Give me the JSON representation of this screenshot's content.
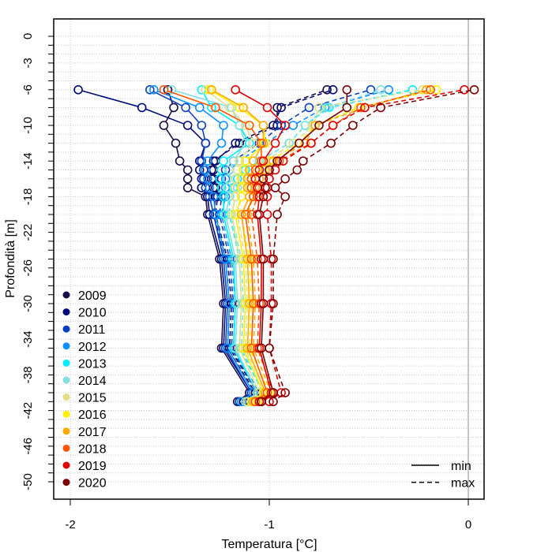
{
  "chart_data": {
    "type": "line",
    "xlabel": "Temperatura [°C]",
    "ylabel": "Profondità [m]",
    "xlim": [
      -2.08,
      0.08
    ],
    "ylim": [
      -52,
      2
    ],
    "xticks": [
      -2,
      -1,
      0
    ],
    "xtick_labels": [
      "-2",
      "-1",
      "0"
    ],
    "yticks": [
      0,
      -3,
      -6,
      -10,
      -14,
      -18,
      -22,
      -26,
      -30,
      -34,
      -38,
      -42,
      -46,
      -50
    ],
    "ytick_labels": [
      "0",
      "-3",
      "-6",
      "-10",
      "-14",
      "-18",
      "-22",
      "-26",
      "-30",
      "-34",
      "-38",
      "-42",
      "-46",
      "-50"
    ],
    "grid": true,
    "reference_line_x": 0,
    "legend_position": "bottom-left",
    "linetype_legend_position": "bottom-right",
    "linetype_legend": [
      {
        "label": "min",
        "style": "solid"
      },
      {
        "label": "max",
        "style": "dashed"
      }
    ],
    "depths": [
      -6,
      -8,
      -10,
      -12,
      -14,
      -15,
      -16,
      -17,
      -18,
      -20,
      -25,
      -30,
      -35,
      -40,
      -41
    ],
    "series": [
      {
        "name": "2009",
        "color": "#1b0c45",
        "min": [
          -1.51,
          -1.48,
          -1.53,
          -1.47,
          -1.45,
          -1.41,
          -1.41,
          -1.41,
          -1.32,
          -1.31,
          -1.25,
          -1.23,
          -1.24,
          -1.1,
          -1.16
        ],
        "max": [
          -0.71,
          -0.96,
          -0.96,
          -1.15,
          -1.28,
          -1.29,
          -1.29,
          -1.28,
          -1.27,
          -1.28,
          -1.22,
          -1.2,
          -1.21,
          -1.07,
          -1.13
        ]
      },
      {
        "name": "2010",
        "color": "#000a78",
        "min": [
          -1.96,
          -1.64,
          -1.41,
          -1.32,
          -1.35,
          -1.35,
          -1.34,
          -1.34,
          -1.31,
          -1.3,
          -1.24,
          -1.22,
          -1.23,
          -1.09,
          -1.15
        ],
        "max": [
          -0.68,
          -0.94,
          -0.98,
          -1.17,
          -1.27,
          -1.28,
          -1.28,
          -1.27,
          -1.26,
          -1.27,
          -1.21,
          -1.19,
          -1.2,
          -1.06,
          -1.12
        ]
      },
      {
        "name": "2011",
        "color": "#0a40c0",
        "min": [
          -1.6,
          -1.42,
          -1.34,
          -1.32,
          -1.34,
          -1.33,
          -1.33,
          -1.32,
          -1.3,
          -1.28,
          -1.23,
          -1.21,
          -1.22,
          -1.09,
          -1.15
        ],
        "max": [
          -0.49,
          -0.8,
          -0.94,
          -1.05,
          -1.18,
          -1.22,
          -1.24,
          -1.24,
          -1.24,
          -1.25,
          -1.2,
          -1.18,
          -1.19,
          -1.06,
          -1.12
        ]
      },
      {
        "name": "2012",
        "color": "#0a90ff",
        "min": [
          -1.58,
          -1.35,
          -1.23,
          -1.24,
          -1.31,
          -1.32,
          -1.31,
          -1.3,
          -1.28,
          -1.27,
          -1.22,
          -1.2,
          -1.21,
          -1.08,
          -1.14
        ],
        "max": [
          -0.4,
          -0.72,
          -0.88,
          -1.02,
          -1.15,
          -1.2,
          -1.22,
          -1.22,
          -1.22,
          -1.24,
          -1.19,
          -1.17,
          -1.18,
          -1.05,
          -1.11
        ]
      },
      {
        "name": "2013",
        "color": "#00eeff",
        "min": [
          -1.34,
          -1.29,
          -1.15,
          -1.1,
          -1.23,
          -1.24,
          -1.25,
          -1.24,
          -1.23,
          -1.23,
          -1.18,
          -1.17,
          -1.18,
          -1.06,
          -1.12
        ],
        "max": [
          -0.28,
          -0.7,
          -0.82,
          -0.9,
          -1.05,
          -1.12,
          -1.16,
          -1.18,
          -1.2,
          -1.2,
          -1.15,
          -1.14,
          -1.15,
          -1.03,
          -1.09
        ]
      },
      {
        "name": "2014",
        "color": "#80e0e0",
        "min": [
          -1.49,
          -1.19,
          -1.15,
          -1.12,
          -1.18,
          -1.2,
          -1.21,
          -1.21,
          -1.2,
          -1.22,
          -1.17,
          -1.16,
          -1.17,
          -1.06,
          -1.12
        ],
        "max": [
          -0.44,
          -0.71,
          -0.82,
          -0.9,
          -1.05,
          -1.1,
          -1.14,
          -1.16,
          -1.17,
          -1.19,
          -1.14,
          -1.13,
          -1.14,
          -1.03,
          -1.09
        ]
      },
      {
        "name": "2015",
        "color": "#e0e08a",
        "min": [
          -1.32,
          -1.2,
          -1.12,
          -1.08,
          -1.15,
          -1.16,
          -1.17,
          -1.17,
          -1.17,
          -1.19,
          -1.15,
          -1.14,
          -1.15,
          -1.05,
          -1.11
        ],
        "max": [
          -0.23,
          -0.75,
          -0.78,
          -0.88,
          -1.02,
          -1.07,
          -1.11,
          -1.13,
          -1.14,
          -1.16,
          -1.12,
          -1.11,
          -1.12,
          -1.02,
          -1.08
        ]
      },
      {
        "name": "2016",
        "color": "#fff000",
        "min": [
          -1.3,
          -1.15,
          -1.03,
          -1.02,
          -1.12,
          -1.13,
          -1.14,
          -1.14,
          -1.14,
          -1.17,
          -1.13,
          -1.12,
          -1.13,
          -1.03,
          -1.09
        ],
        "max": [
          -0.16,
          -0.55,
          -0.77,
          -0.85,
          -1.0,
          -1.03,
          -1.07,
          -1.09,
          -1.1,
          -1.14,
          -1.1,
          -1.09,
          -1.1,
          -1.0,
          -1.06
        ]
      },
      {
        "name": "2017",
        "color": "#ffaa00",
        "min": [
          -1.29,
          -1.13,
          -1.03,
          -1.03,
          -1.08,
          -1.1,
          -1.11,
          -1.11,
          -1.1,
          -1.14,
          -1.11,
          -1.1,
          -1.11,
          -1.02,
          -1.08
        ],
        "max": [
          -0.21,
          -0.52,
          -0.77,
          -0.82,
          -0.98,
          -1.02,
          -1.05,
          -1.07,
          -1.08,
          -1.11,
          -1.08,
          -1.07,
          -1.08,
          -0.99,
          -1.05
        ]
      },
      {
        "name": "2018",
        "color": "#ff5500",
        "min": [
          -1.53,
          -1.27,
          -1.1,
          -1.04,
          -1.04,
          -1.07,
          -1.09,
          -1.09,
          -1.08,
          -1.12,
          -1.09,
          -1.08,
          -1.09,
          -1.01,
          -1.07
        ],
        "max": [
          -0.19,
          -0.54,
          -0.68,
          -0.79,
          -0.95,
          -1.0,
          -1.03,
          -1.05,
          -1.06,
          -1.09,
          -1.06,
          -1.05,
          -1.06,
          -0.98,
          -1.04
        ]
      },
      {
        "name": "2019",
        "color": "#dd0000",
        "min": [
          -1.17,
          -1.01,
          -0.92,
          -0.97,
          -1.03,
          -1.05,
          -1.07,
          -1.06,
          -1.05,
          -1.06,
          -1.04,
          -1.04,
          -1.05,
          -0.99,
          -1.05
        ],
        "max": [
          -0.02,
          -0.52,
          -0.68,
          -0.79,
          -0.93,
          -0.97,
          -1.0,
          -1.01,
          -1.01,
          -1.01,
          -0.99,
          -0.99,
          -1.0,
          -0.94,
          -1.0
        ]
      },
      {
        "name": "2020",
        "color": "#7a0000",
        "min": [
          -0.61,
          -0.61,
          -0.75,
          -0.85,
          -0.96,
          -1.0,
          -1.03,
          -1.02,
          -1.03,
          -1.05,
          -1.03,
          -1.03,
          -1.04,
          -0.98,
          -1.04
        ],
        "max": [
          0.03,
          -0.44,
          -0.58,
          -0.69,
          -0.83,
          -0.86,
          -0.92,
          -0.97,
          -0.92,
          -0.96,
          -0.98,
          -0.98,
          -1.0,
          -0.92,
          -0.98
        ]
      }
    ]
  }
}
